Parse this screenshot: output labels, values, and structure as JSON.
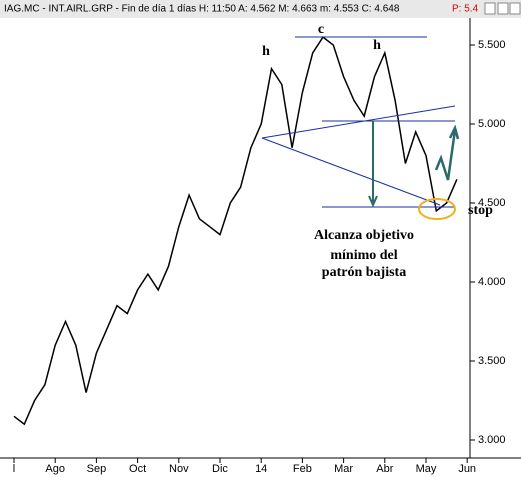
{
  "chart_data": {
    "type": "line",
    "title": "IAG.MC - INT.AIRL.GRP - Fin de día 1 días  H: 11:50  A: 4.562  M: 4.663  m: 4.553  C: 4.648",
    "title_extra": "P: 5.4",
    "annotations": [
      "h",
      "c",
      "h",
      "stop",
      "Alcanza objetivo",
      "mínimo del",
      "patrón bajista"
    ],
    "categories": [
      "l",
      null,
      null,
      null,
      "Ago",
      null,
      null,
      null,
      "Sep",
      null,
      null,
      null,
      "Oct",
      null,
      null,
      null,
      "Nov",
      null,
      null,
      null,
      "Dic",
      null,
      null,
      null,
      "14",
      null,
      null,
      null,
      "Feb",
      null,
      null,
      null,
      "Mar",
      null,
      null,
      null,
      "Abr",
      null,
      null,
      null,
      "May",
      null,
      null,
      null,
      "Jun"
    ],
    "series": [
      {
        "name": "IAG.MC",
        "color": "#000000",
        "values": [
          3.15,
          3.1,
          3.25,
          3.35,
          3.6,
          3.75,
          3.6,
          3.3,
          3.55,
          3.7,
          3.85,
          3.8,
          3.95,
          4.05,
          3.95,
          4.1,
          4.35,
          4.55,
          4.4,
          4.35,
          4.3,
          4.5,
          4.6,
          4.85,
          5.0,
          5.35,
          5.25,
          4.85,
          5.2,
          5.45,
          5.55,
          5.5,
          5.3,
          5.15,
          5.05,
          5.3,
          5.45,
          5.15,
          4.75,
          4.95,
          4.8,
          4.45,
          4.5,
          4.65,
          null
        ]
      }
    ],
    "ylim": [
      2.905,
      5.69
    ],
    "yticks": [
      {
        "value": 3,
        "label": "3.000"
      },
      {
        "value": 3.5,
        "label": "3.500"
      },
      {
        "value": 4,
        "label": "4.000"
      },
      {
        "value": 4.5,
        "label": "4.500"
      },
      {
        "value": 5,
        "label": "5.000"
      },
      {
        "value": 5.5,
        "label": "5.500"
      }
    ]
  }
}
